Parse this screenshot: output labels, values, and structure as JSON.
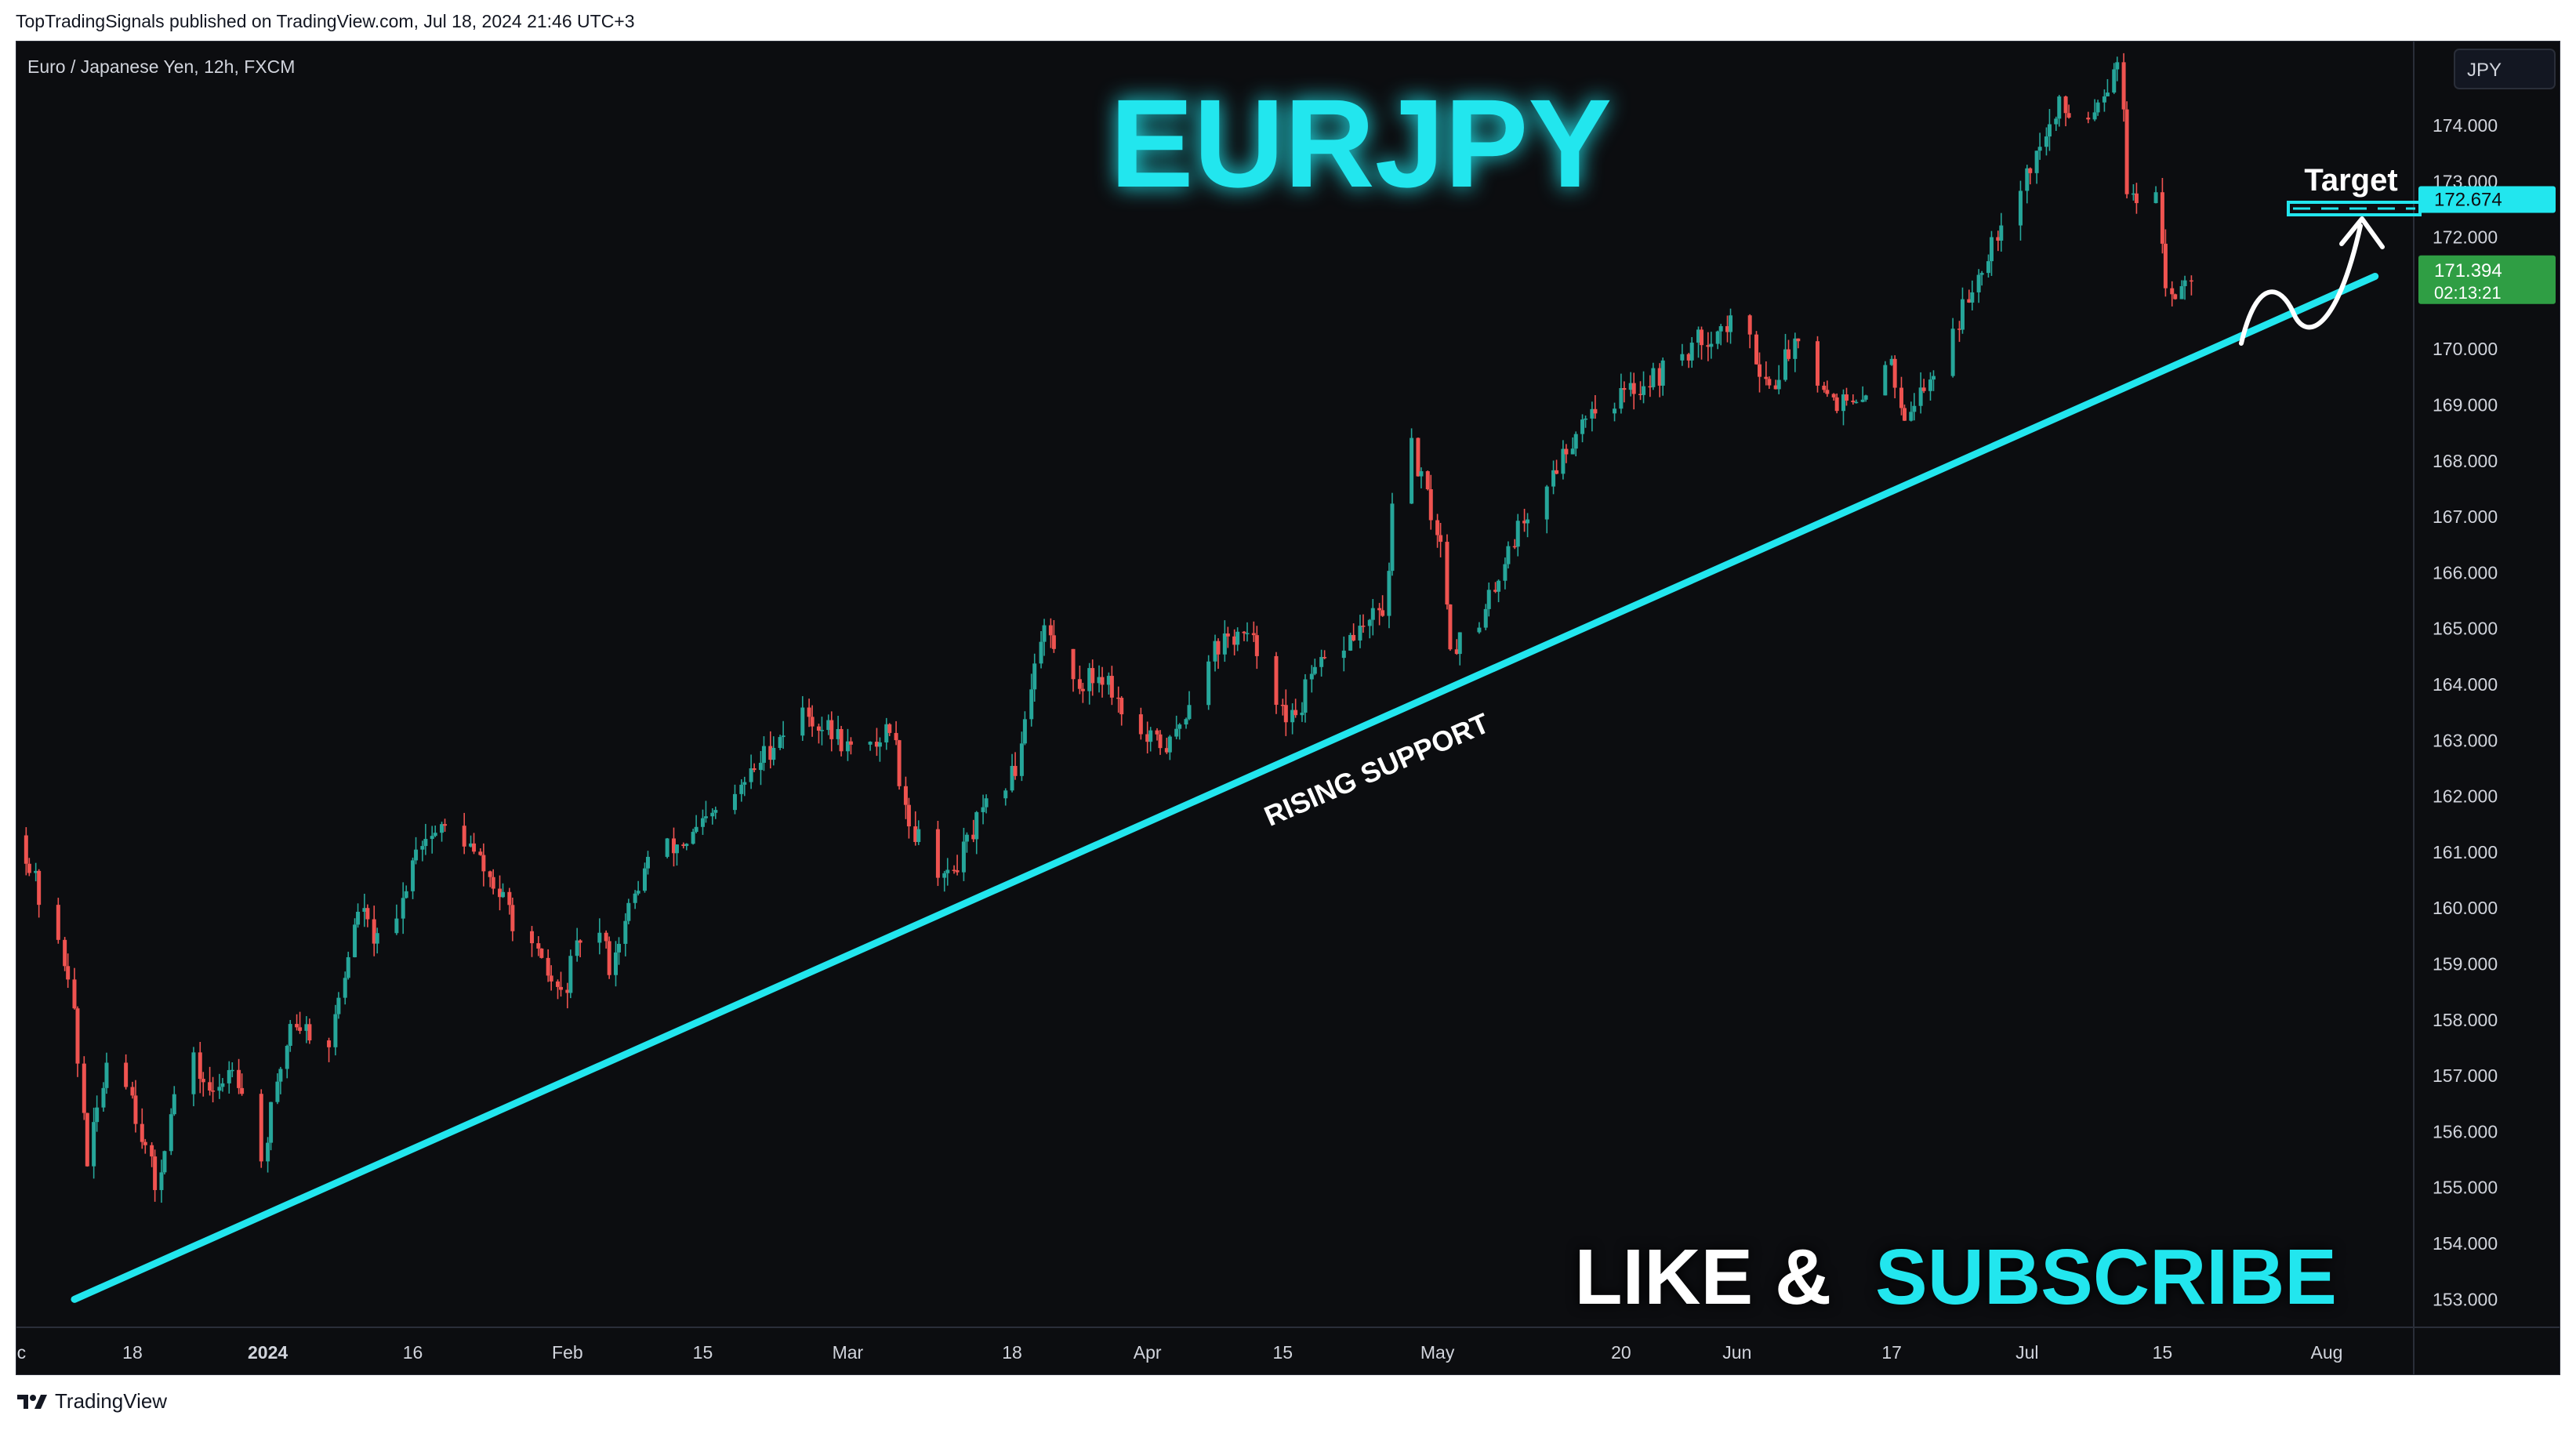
{
  "header": {
    "publisher_line": "TopTradingSignals published on TradingView.com, Jul 18, 2024 21:46 UTC+3"
  },
  "footer": {
    "brand": "TradingView",
    "logo_icon": "tradingview-logo-icon"
  },
  "chart": {
    "symbol_line": "Euro / Japanese Yen, 12h, FXCM",
    "big_title": "EURJPY",
    "annotation_support": "RISING SUPPORT",
    "annotation_target": "Target",
    "cta_like": "LIKE &",
    "cta_subscribe": "SUBSCRIBE",
    "currency_button": "JPY",
    "target_price_label": "172.674",
    "last_price_label": "171.394",
    "countdown_label": "02:13:21",
    "colors": {
      "background": "#0c0d10",
      "accent_cyan": "#22e6ee",
      "up": "#26a69a",
      "down": "#ef5350",
      "axis_text": "#d1d4dc",
      "last_price_bg": "#2f9e44"
    }
  },
  "chart_data": {
    "type": "candlestick",
    "title": "EURJPY",
    "symbol": "Euro / Japanese Yen, 12h, FXCM",
    "interval": "12h",
    "ylim": [
      152.5,
      175.5
    ],
    "y_ticks": [
      "153.000",
      "154.000",
      "155.000",
      "156.000",
      "157.000",
      "158.000",
      "159.000",
      "160.000",
      "161.000",
      "162.000",
      "163.000",
      "164.000",
      "165.000",
      "166.000",
      "167.000",
      "168.000",
      "169.000",
      "170.000",
      "171.000",
      "172.000",
      "173.000",
      "174.000"
    ],
    "x_ticks": [
      "ec",
      "18",
      "2024",
      "16",
      "Feb",
      "15",
      "Mar",
      "18",
      "Apr",
      "15",
      "May",
      "20",
      "Jun",
      "17",
      "Jul",
      "15",
      "Aug"
    ],
    "price_path": [
      [
        "2023-12-07",
        161.3
      ],
      [
        "2023-12-10",
        159.6
      ],
      [
        "2023-12-12",
        158.9
      ],
      [
        "2023-12-14",
        155.5
      ],
      [
        "2023-12-16",
        157.3
      ],
      [
        "2023-12-18",
        157.0
      ],
      [
        "2023-12-21",
        155.0
      ],
      [
        "2023-12-24",
        157.5
      ],
      [
        "2023-12-27",
        156.6
      ],
      [
        "2023-12-29",
        157.3
      ],
      [
        "2024-01-01",
        155.5
      ],
      [
        "2024-01-04",
        158.0
      ],
      [
        "2024-01-08",
        157.6
      ],
      [
        "2024-01-11",
        160.0
      ],
      [
        "2024-01-14",
        159.0
      ],
      [
        "2024-01-17",
        161.2
      ],
      [
        "2024-01-21",
        161.5
      ],
      [
        "2024-01-25",
        160.4
      ],
      [
        "2024-01-29",
        159.2
      ],
      [
        "2024-02-01",
        158.4
      ],
      [
        "2024-02-04",
        160.0
      ],
      [
        "2024-02-06",
        159.0
      ],
      [
        "2024-02-10",
        160.9
      ],
      [
        "2024-02-14",
        161.2
      ],
      [
        "2024-02-19",
        162.0
      ],
      [
        "2024-02-23",
        163.0
      ],
      [
        "2024-02-26",
        163.5
      ],
      [
        "2024-03-01",
        163.0
      ],
      [
        "2024-03-03",
        162.6
      ],
      [
        "2024-03-06",
        163.3
      ],
      [
        "2024-03-08",
        161.5
      ],
      [
        "2024-03-12",
        160.5
      ],
      [
        "2024-03-15",
        161.5
      ],
      [
        "2024-03-19",
        162.5
      ],
      [
        "2024-03-21",
        164.5
      ],
      [
        "2024-03-22",
        165.0
      ],
      [
        "2024-03-25",
        164.0
      ],
      [
        "2024-03-28",
        164.2
      ],
      [
        "2024-04-01",
        163.0
      ],
      [
        "2024-04-04",
        162.9
      ],
      [
        "2024-04-08",
        164.6
      ],
      [
        "2024-04-11",
        164.9
      ],
      [
        "2024-04-14",
        164.5
      ],
      [
        "2024-04-16",
        163.2
      ],
      [
        "2024-04-19",
        164.2
      ],
      [
        "2024-04-23",
        164.9
      ],
      [
        "2024-04-26",
        165.3
      ],
      [
        "2024-04-28",
        168.8
      ],
      [
        "2024-04-30",
        167.6
      ],
      [
        "2024-05-02",
        166.5
      ],
      [
        "2024-05-03",
        164.7
      ],
      [
        "2024-05-06",
        165.0
      ],
      [
        "2024-05-09",
        166.5
      ],
      [
        "2024-05-13",
        167.6
      ],
      [
        "2024-05-17",
        168.9
      ],
      [
        "2024-05-21",
        169.2
      ],
      [
        "2024-05-25",
        169.6
      ],
      [
        "2024-05-29",
        170.2
      ],
      [
        "2024-06-02",
        170.5
      ],
      [
        "2024-06-05",
        169.3
      ],
      [
        "2024-06-08",
        170.3
      ],
      [
        "2024-06-11",
        169.2
      ],
      [
        "2024-06-14",
        168.9
      ],
      [
        "2024-06-17",
        169.9
      ],
      [
        "2024-06-19",
        168.9
      ],
      [
        "2024-06-21",
        169.3
      ],
      [
        "2024-06-25",
        170.7
      ],
      [
        "2024-06-28",
        172.0
      ],
      [
        "2024-07-02",
        173.3
      ],
      [
        "2024-07-05",
        174.3
      ],
      [
        "2024-07-08",
        174.2
      ],
      [
        "2024-07-10",
        174.8
      ],
      [
        "2024-07-11",
        175.3
      ],
      [
        "2024-07-12",
        172.9
      ],
      [
        "2024-07-14",
        172.0
      ],
      [
        "2024-07-15",
        172.6
      ],
      [
        "2024-07-16",
        171.2
      ],
      [
        "2024-07-17",
        171.0
      ],
      [
        "2024-07-18",
        171.394
      ]
    ],
    "last_price": 171.394,
    "target_price": 172.674,
    "support_line": {
      "from": [
        "2023-12-12",
        153.0
      ],
      "to": [
        "2024-08-06",
        171.3
      ]
    },
    "annotations": [
      "RISING SUPPORT",
      "Target"
    ]
  }
}
